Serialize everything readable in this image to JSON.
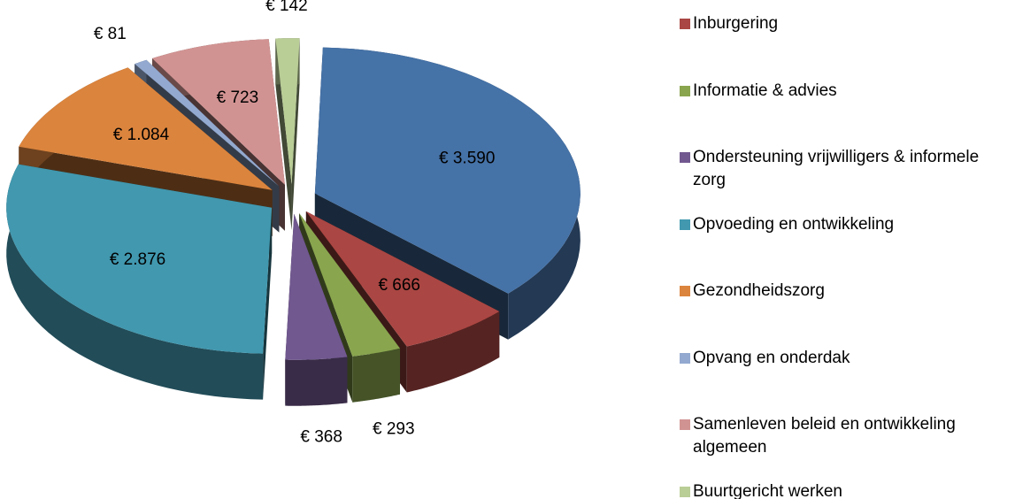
{
  "chart_data": {
    "type": "pie",
    "categories": [
      null,
      "Inburgering",
      "Informatie & advies",
      "Ondersteuning vrijwilligers & informele zorg",
      "Opvoeding en ontwikkeling",
      "Gezondheidszorg",
      "Opvang en onderdak",
      "Samenleven beleid en ontwikkeling algemeen",
      "Buurtgericht werken"
    ],
    "values": [
      3590,
      666,
      293,
      368,
      2876,
      1084,
      81,
      723,
      142
    ],
    "value_labels": [
      "€ 3.590",
      "€ 666",
      "€ 293",
      "€ 368",
      "€ 2.876",
      "€ 1.084",
      "€ 81",
      "€ 723",
      "€ 142"
    ],
    "colors": [
      "#4572a7",
      "#aa4643",
      "#89a54e",
      "#71588f",
      "#4198af",
      "#db843d",
      "#93a9cf",
      "#d19392",
      "#b9cd96"
    ],
    "legend": "right"
  }
}
